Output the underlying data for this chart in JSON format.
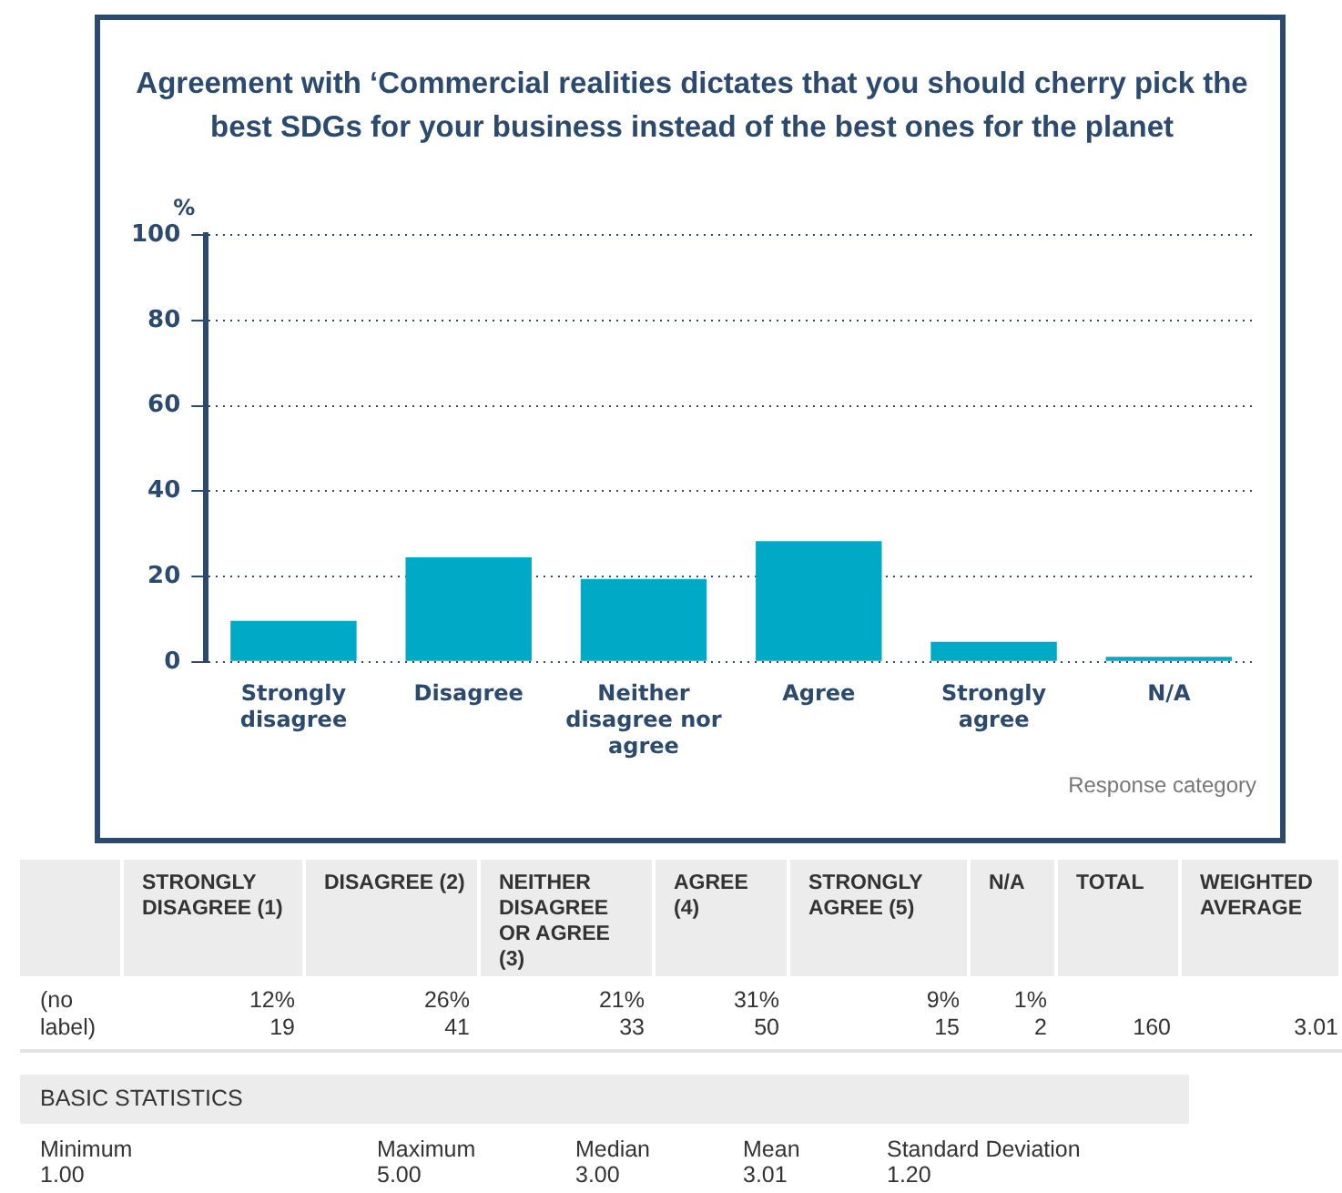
{
  "chart_data": {
    "type": "bar",
    "title": "Agreement with ‘Commercial realities dictates that you should cherry pick the best SDGs for your business instead of the best ones for the planet",
    "ylabel": "%",
    "xlabel": "Response category",
    "categories": [
      "Strongly disagree",
      "Disagree",
      "Neither disagree nor agree",
      "Agree",
      "Strongly agree",
      "N/A"
    ],
    "values": [
      9.6,
      24.5,
      19.4,
      28.3,
      4.7,
      1.2
    ],
    "color": "#00a9c6",
    "ylim": [
      0,
      100
    ],
    "yticks": [
      0,
      20,
      40,
      60,
      80,
      100
    ],
    "grid": "y",
    "annotations": [
      "STRONGLY DISAGREE (1)",
      "DISAGREE (2)",
      "NEITHER DISAGREE OR AGREE (3)",
      "AGREE (4)",
      "STRONGLY AGREE (5)",
      "N/A",
      "TOTAL",
      "WEIGHTED AVERAGE",
      "(no label)",
      "12%",
      "26%",
      "21%",
      "31%",
      "9%",
      "1%",
      "19",
      "41",
      "33",
      "50",
      "15",
      "2",
      "160",
      "3.01",
      "BASIC STATISTICS",
      "Minimum",
      "Maximum",
      "Median",
      "Mean",
      "Standard Deviation",
      "1.00",
      "5.00",
      "3.00",
      "3.01",
      "1.20"
    ]
  }
}
